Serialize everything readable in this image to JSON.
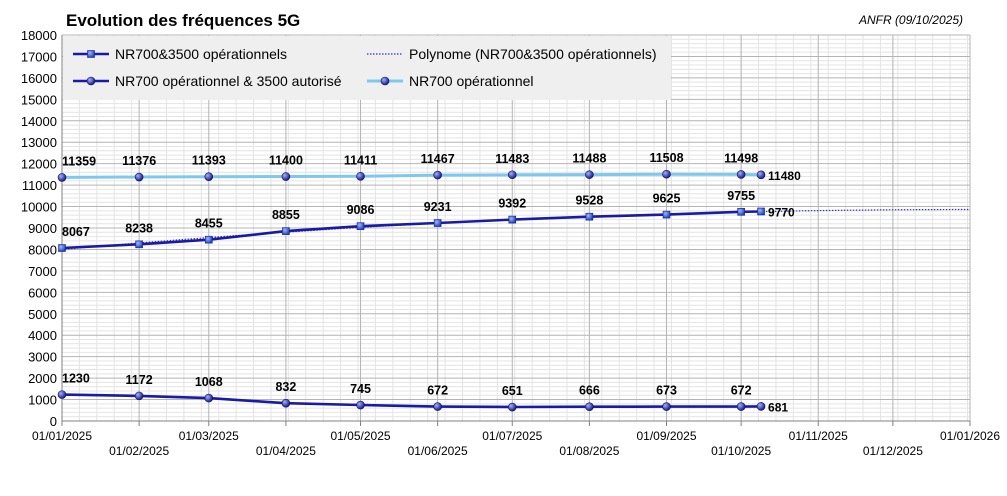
{
  "chart_data": {
    "type": "line",
    "title": "Evolution des fréquences 5G",
    "source": "ANFR (09/10/2025)",
    "xlabel": "",
    "ylabel": "",
    "ylim": [
      0,
      18000
    ],
    "y_ticks": [
      "0",
      "1000",
      "2000",
      "3000",
      "4000",
      "5000",
      "6000",
      "7000",
      "8000",
      "9000",
      "10000",
      "11000",
      "12000",
      "13000",
      "14000",
      "15000",
      "16000",
      "17000",
      "18000"
    ],
    "x_ticks": [
      "01/01/2025",
      "01/02/2025",
      "01/03/2025",
      "01/04/2025",
      "01/05/2025",
      "01/06/2025",
      "01/07/2025",
      "01/08/2025",
      "01/09/2025",
      "01/10/2025",
      "01/11/2025",
      "01/12/2025",
      "01/01/2026"
    ],
    "x": [
      "01/01/2025",
      "01/02/2025",
      "01/03/2025",
      "01/04/2025",
      "01/05/2025",
      "01/06/2025",
      "01/07/2025",
      "01/08/2025",
      "01/09/2025",
      "01/10/2025",
      "09/10/2025"
    ],
    "grid": true,
    "legend_position": "top-left",
    "series": [
      {
        "name": "NR700&3500 opérationnels",
        "color": "#1a1aa8",
        "marker": "square",
        "values": [
          8067,
          8238,
          8455,
          8855,
          9086,
          9231,
          9392,
          9528,
          9625,
          9755,
          9770
        ],
        "labels": [
          "8067",
          "8238",
          "8455",
          "8855",
          "9086",
          "9231",
          "9392",
          "9528",
          "9625",
          "9755",
          "9770"
        ]
      },
      {
        "name": "NR700 opérationnel & 3500 autorisé",
        "color": "#1a1aa8",
        "marker": "circle",
        "values": [
          1230,
          1172,
          1068,
          832,
          745,
          672,
          651,
          666,
          673,
          672,
          681
        ],
        "labels": [
          "1230",
          "1172",
          "1068",
          "832",
          "745",
          "672",
          "651",
          "666",
          "673",
          "672",
          "681"
        ]
      },
      {
        "name": "NR700 opérationnel",
        "color": "#7cc8ef",
        "marker": "circle",
        "values": [
          11359,
          11376,
          11393,
          11400,
          11411,
          11467,
          11483,
          11488,
          11508,
          11498,
          11480
        ],
        "labels": [
          "11359",
          "11376",
          "11393",
          "11400",
          "11411",
          "11467",
          "11483",
          "11488",
          "11508",
          "11498",
          "11480"
        ]
      },
      {
        "name": "Polynome (NR700&3500 opérationnels)",
        "color": "#3030c0",
        "style": "dotted-trendline",
        "x_range": [
          "01/01/2025",
          "01/01/2026"
        ],
        "y_range": [
          8040,
          10290
        ]
      }
    ]
  }
}
